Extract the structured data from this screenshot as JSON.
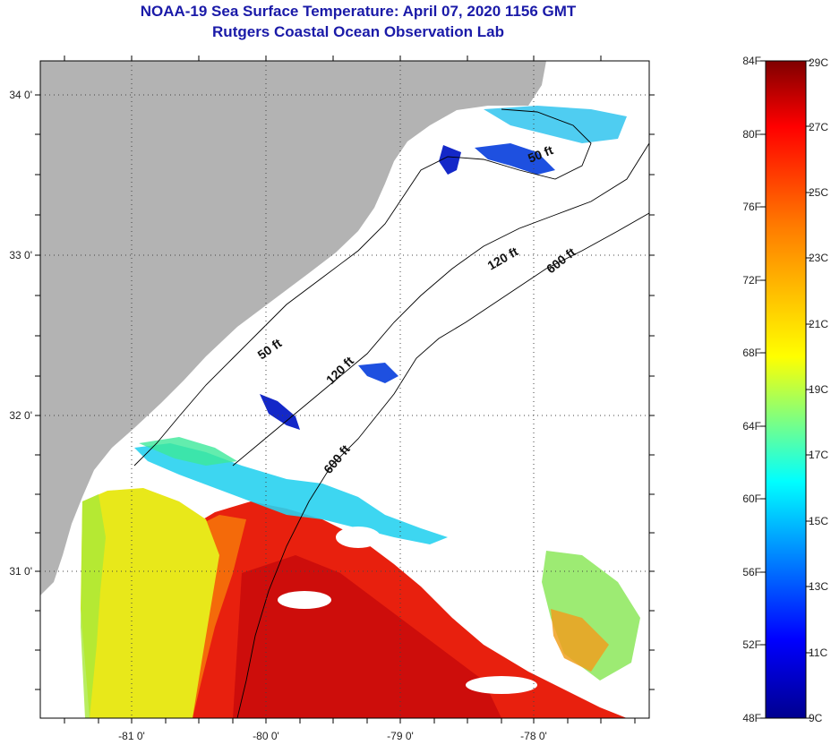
{
  "header": {
    "title": "NOAA-19 Sea Surface Temperature:  April 07, 2020 1156 GMT",
    "subtitle": "Rutgers Coastal Ocean Observation Lab"
  },
  "map": {
    "lat_labels": [
      "34 0'",
      "33 0'",
      "32 0'",
      "31 0'"
    ],
    "lon_labels": [
      "-81 0'",
      "-80 0'",
      "-79 0'",
      "-78 0'"
    ],
    "contours": [
      "50 ft",
      "120 ft",
      "600 ft",
      "50 ft",
      "120 ft",
      "600 ft"
    ],
    "colors": {
      "land": "#b3b3b3",
      "cloud": "#ffffff",
      "warm": "#e8200e",
      "hot": "#c80a0a",
      "orange": "#f46a0a",
      "yellow": "#e8e81a",
      "cyan": "#28d2f0",
      "blue": "#1428c8"
    }
  },
  "colorbar": {
    "fahrenheit": [
      "84F",
      "80F",
      "76F",
      "72F",
      "68F",
      "64F",
      "60F",
      "56F",
      "52F",
      "48F"
    ],
    "celsius": [
      "29C",
      "27C",
      "25C",
      "23C",
      "21C",
      "19C",
      "17C",
      "15C",
      "13C",
      "11C",
      "9C"
    ]
  }
}
